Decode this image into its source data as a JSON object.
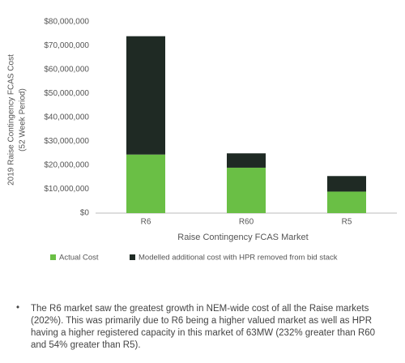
{
  "chart_data": {
    "type": "stacked_bar",
    "y_label": [
      "2019 Raise Contingency  FCAS Cost",
      "(52 Week Period)"
    ],
    "x_label": "Raise Contingency  FCAS Market",
    "categories": [
      "R6",
      "R60",
      "R5"
    ],
    "series": [
      {
        "name": "Actual Cost",
        "color": "#6abf45",
        "values": [
          24500000,
          19000000,
          9000000
        ]
      },
      {
        "name": "Modelled additional cost with HPR removed from bid stack",
        "color": "#1f2a24",
        "values": [
          49500000,
          6000000,
          6500000
        ]
      }
    ],
    "ylim": [
      0,
      80000000
    ],
    "yticks": [
      {
        "value": 0,
        "label": "$0"
      },
      {
        "value": 10000000,
        "label": "$10,000,000"
      },
      {
        "value": 20000000,
        "label": "$20,000,000"
      },
      {
        "value": 30000000,
        "label": "$30,000,000"
      },
      {
        "value": 40000000,
        "label": "$40,000,000"
      },
      {
        "value": 50000000,
        "label": "$50,000,000"
      },
      {
        "value": 60000000,
        "label": "$60,000,000"
      },
      {
        "value": 70000000,
        "label": "$70,000,000"
      },
      {
        "value": 80000000,
        "label": "$80,000,000"
      }
    ],
    "grid": false
  },
  "note": "The R6 market saw the greatest growth in NEM-wide cost of all the Raise markets (202%). This was primarily due to R6 being a higher valued market as well as HPR having a higher registered capacity in this market of 63MW (232% greater than R60 and 54% greater than R5)."
}
